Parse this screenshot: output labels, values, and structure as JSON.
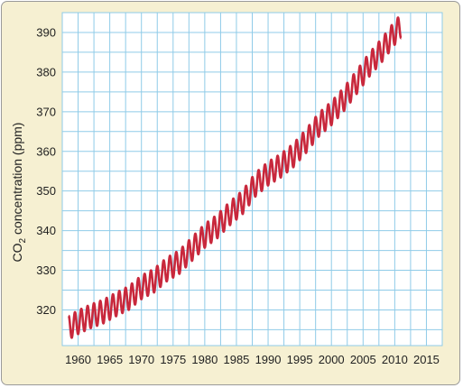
{
  "chart_data": {
    "type": "line",
    "ylabel": "CO₂ concentration (ppm)",
    "ylabel_parts": {
      "prefix": "CO",
      "subscript": "2",
      "suffix": " concentration (ppm)"
    },
    "xlim": [
      1957.5,
      2017.5
    ],
    "ylim": [
      311,
      395
    ],
    "x_ticks": [
      1960,
      1965,
      1970,
      1975,
      1980,
      1985,
      1990,
      1995,
      2000,
      2005,
      2010,
      2015
    ],
    "y_ticks": [
      320,
      330,
      340,
      350,
      360,
      370,
      380,
      390
    ],
    "grid": true,
    "legend": "none",
    "seasonal_amplitude_ppm": 3,
    "series": [
      {
        "color": "#c8283c",
        "x": [
          1958.5,
          1960,
          1962,
          1964,
          1966,
          1968,
          1970,
          1972,
          1974,
          1976,
          1978,
          1980,
          1982,
          1984,
          1986,
          1988,
          1990,
          1992,
          1994,
          1996,
          1998,
          2000,
          2002,
          2004,
          2006,
          2008,
          2010,
          2011
        ],
        "y": [
          315.5,
          316.9,
          318.4,
          319.6,
          321.4,
          323.0,
          325.7,
          327.4,
          330.2,
          332.1,
          335.4,
          338.7,
          341.1,
          344.4,
          347.2,
          351.6,
          354.4,
          356.4,
          359.0,
          362.6,
          366.7,
          369.6,
          373.2,
          377.5,
          381.9,
          385.6,
          389.9,
          391.6
        ]
      }
    ]
  },
  "colors": {
    "background": "#f6f0d2",
    "plot_area": "#ffffff",
    "grid": "#8fcbe8",
    "line": "#c8283c"
  }
}
